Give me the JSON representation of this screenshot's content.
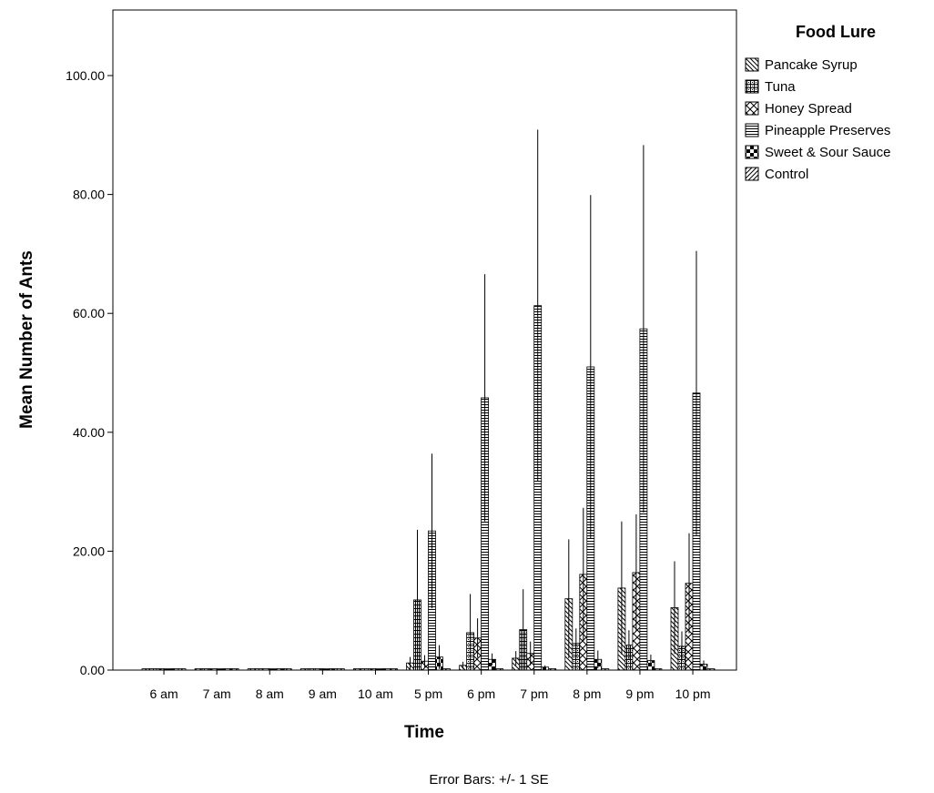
{
  "chart_data": {
    "type": "bar",
    "xlabel": "Time",
    "ylabel": "Mean Number of Ants",
    "ylim": [
      0,
      110
    ],
    "yticks": [
      0,
      20,
      40,
      60,
      80,
      100
    ],
    "ytick_labels": [
      "0.00",
      "20.00",
      "40.00",
      "60.00",
      "80.00",
      "100.00"
    ],
    "grid": false,
    "legend_position": "right",
    "legend_title": "Food Lure",
    "footnote": "Error Bars: +/- 1 SE",
    "categories": [
      "6 am",
      "7 am",
      "8 am",
      "9 am",
      "10 am",
      "5 pm",
      "6 pm",
      "7 pm",
      "8 pm",
      "9 pm",
      "10 pm"
    ],
    "series": [
      {
        "name": "Pancake Syrup",
        "pattern": "diag-back",
        "values": [
          0,
          0,
          0,
          0,
          0,
          1.2,
          0.8,
          2.0,
          12.0,
          13.8,
          10.5
        ],
        "errors": [
          0,
          0,
          0,
          0,
          0,
          1.0,
          0.6,
          1.2,
          10.0,
          11.2,
          7.8
        ]
      },
      {
        "name": "Tuna",
        "pattern": "tuna",
        "values": [
          0,
          0,
          0,
          0,
          0,
          11.8,
          6.3,
          6.8,
          4.5,
          4.2,
          4.0
        ],
        "errors": [
          0,
          0,
          0,
          0,
          0,
          11.8,
          6.5,
          6.8,
          2.5,
          2.5,
          2.5
        ]
      },
      {
        "name": "Honey Spread",
        "pattern": "honey",
        "values": [
          0,
          0,
          0,
          0,
          0,
          1.5,
          5.4,
          2.8,
          16.1,
          16.4,
          14.6
        ],
        "errors": [
          0,
          0,
          0,
          0,
          0,
          1.0,
          3.3,
          2.0,
          11.2,
          9.8,
          8.4
        ]
      },
      {
        "name": "Pineapple Preserves",
        "pattern": "hlines",
        "values": [
          0,
          0,
          0,
          0,
          0,
          23.4,
          45.8,
          61.3,
          51.0,
          57.4,
          46.6
        ],
        "errors": [
          0,
          0,
          0,
          0,
          0,
          13.0,
          20.8,
          29.6,
          28.9,
          30.9,
          23.9
        ]
      },
      {
        "name": "Sweet & Sour Sauce",
        "pattern": "checker",
        "values": [
          0,
          0,
          0,
          0,
          0,
          2.2,
          1.8,
          0.5,
          1.8,
          1.6,
          1.0
        ],
        "errors": [
          0,
          0,
          0,
          0,
          0,
          2.0,
          1.0,
          0.3,
          1.5,
          1.0,
          0.6
        ]
      },
      {
        "name": "Control",
        "pattern": "diag-fwd",
        "values": [
          0,
          0,
          0,
          0,
          0,
          0,
          0,
          0,
          0,
          0,
          0
        ],
        "errors": [
          0,
          0,
          0,
          0,
          0,
          0,
          0,
          0,
          0,
          0,
          0
        ]
      }
    ]
  }
}
